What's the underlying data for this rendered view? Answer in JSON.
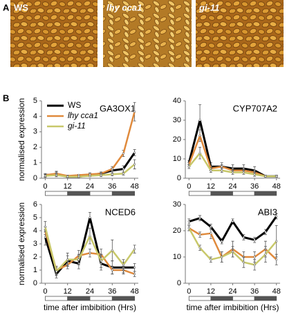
{
  "panel_labels": [
    "A",
    "B"
  ],
  "photos": [
    {
      "label": "WS"
    },
    {
      "label": "lhy cca1"
    },
    {
      "label": "gi-11"
    }
  ],
  "chart_data": [
    {
      "type": "line",
      "title": "GA3OX1",
      "ylabel": "normalised expression",
      "x": [
        0,
        6,
        12,
        18,
        24,
        30,
        36,
        42,
        48
      ],
      "xlim": [
        -2,
        50
      ],
      "xticks": [
        0,
        12,
        24,
        36,
        48
      ],
      "ylim": [
        0,
        5
      ],
      "yticks": [
        0,
        1,
        2,
        3,
        4,
        5
      ],
      "legend": "top-left",
      "series": [
        {
          "name": "WS",
          "color": "#000000",
          "values": [
            0.2,
            0.25,
            0.1,
            0.1,
            0.2,
            0.3,
            0.5,
            0.6,
            1.65
          ],
          "errors": [
            0.1,
            0.15,
            0.05,
            0.05,
            0.1,
            0.1,
            0.15,
            0.2,
            0.2
          ]
        },
        {
          "name": "lhy cca1",
          "color": "#e08a3c",
          "values": [
            0.2,
            0.3,
            0.15,
            0.2,
            0.25,
            0.3,
            0.6,
            1.6,
            4.3
          ],
          "errors": [
            0.1,
            0.15,
            0.05,
            0.05,
            0.1,
            0.1,
            0.15,
            0.2,
            0.6
          ]
        },
        {
          "name": "gi-11",
          "color": "#c8c86a",
          "values": [
            0.15,
            0.2,
            0.1,
            0.1,
            0.15,
            0.2,
            0.25,
            0.3,
            0.9
          ],
          "errors": [
            0.1,
            0.1,
            0.05,
            0.05,
            0.05,
            0.1,
            0.1,
            0.1,
            0.3
          ]
        }
      ]
    },
    {
      "type": "line",
      "title": "CYP707A2",
      "x": [
        0,
        6,
        12,
        18,
        24,
        30,
        36,
        42,
        48
      ],
      "xlim": [
        -2,
        50
      ],
      "xticks": [
        0,
        12,
        24,
        36,
        48
      ],
      "ylim": [
        0,
        40
      ],
      "yticks": [
        0,
        10,
        20,
        30,
        40
      ],
      "series": [
        {
          "color": "#000000",
          "values": [
            8,
            30,
            6,
            6,
            5,
            5,
            4,
            1,
            1
          ],
          "errors": [
            1,
            8,
            2,
            2,
            2,
            2,
            2,
            0.5,
            0.5
          ]
        },
        {
          "color": "#e08a3c",
          "values": [
            7,
            22,
            5,
            6,
            4,
            4,
            3,
            1,
            1
          ],
          "errors": [
            1,
            3,
            1,
            1,
            1,
            1,
            1,
            0.5,
            0.5
          ]
        },
        {
          "color": "#c8c86a",
          "values": [
            6,
            13,
            4,
            4,
            3,
            3,
            2,
            1,
            1
          ],
          "errors": [
            1,
            3,
            1,
            1,
            1,
            1,
            1,
            0.5,
            0.5
          ]
        }
      ]
    },
    {
      "type": "line",
      "title": "NCED6",
      "ylabel": "normalised expression",
      "xlabel": "time after imbibition (Hrs)",
      "x": [
        0,
        6,
        12,
        18,
        24,
        30,
        36,
        42,
        48
      ],
      "xlim": [
        -2,
        50
      ],
      "xticks": [
        0,
        12,
        24,
        36,
        48
      ],
      "ylim": [
        0,
        6
      ],
      "yticks": [
        0,
        1,
        2,
        3,
        4,
        5,
        6
      ],
      "series": [
        {
          "color": "#000000",
          "values": [
            3.5,
            0.7,
            1.7,
            1.5,
            5.0,
            1.5,
            1.2,
            1.2,
            1.2
          ],
          "errors": [
            0.6,
            0.3,
            0.4,
            0.4,
            0.4,
            0.5,
            0.5,
            0.4,
            0.3
          ]
        },
        {
          "color": "#e08a3c",
          "values": [
            4.0,
            1.0,
            1.4,
            2.1,
            2.3,
            2.2,
            1.0,
            1.0,
            0.7
          ],
          "errors": [
            0.3,
            0.3,
            0.3,
            0.4,
            0.3,
            0.4,
            0.3,
            0.3,
            0.2
          ]
        },
        {
          "color": "#c8c86a",
          "values": [
            4.3,
            0.9,
            1.8,
            1.8,
            3.6,
            1.7,
            2.5,
            1.4,
            2.6
          ],
          "errors": [
            0.4,
            0.3,
            0.5,
            0.4,
            0.6,
            0.5,
            0.8,
            0.4,
            0.3
          ]
        }
      ]
    },
    {
      "type": "line",
      "title": "ABI3",
      "xlabel": "time after imbibition (Hrs)",
      "x": [
        0,
        6,
        12,
        18,
        24,
        30,
        36,
        42,
        48
      ],
      "xlim": [
        -2,
        50
      ],
      "xticks": [
        0,
        12,
        24,
        36,
        48
      ],
      "ylim": [
        0,
        30
      ],
      "yticks": [
        0,
        10,
        20,
        30
      ],
      "series": [
        {
          "color": "#000000",
          "values": [
            23.5,
            24.8,
            21.5,
            16,
            23.5,
            17.5,
            16.5,
            19.5,
            25.5
          ],
          "errors": [
            1,
            1,
            1,
            1,
            1,
            1,
            1,
            1,
            1
          ]
        },
        {
          "color": "#e08a3c",
          "values": [
            21,
            18.5,
            19,
            10,
            13,
            10,
            10,
            13,
            9
          ],
          "errors": [
            1,
            1,
            2,
            2,
            3,
            2,
            2,
            3,
            2
          ]
        },
        {
          "color": "#c8c86a",
          "values": [
            21,
            13.5,
            9,
            10,
            12,
            8,
            7,
            11,
            16
          ],
          "errors": [
            1,
            1,
            1,
            2,
            2,
            2,
            2,
            3,
            6
          ]
        }
      ]
    }
  ]
}
